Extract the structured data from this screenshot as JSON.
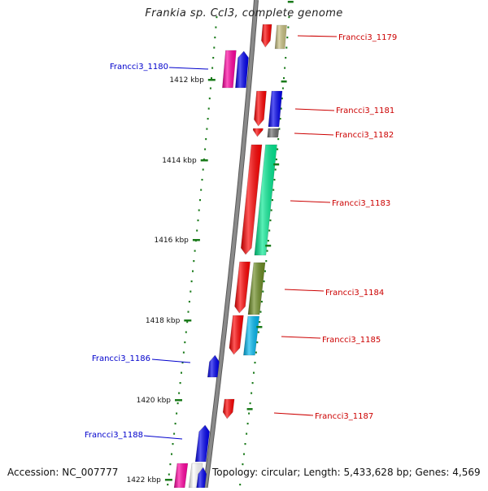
{
  "title": "Frankia sp. CcI3, complete genome",
  "accession": "Accession: NC_007777",
  "topology": "Topology: circular; Length: 5,433,628 bp; Genes: 4,569",
  "ticks": [
    {
      "label": "1412 kbp",
      "kbp": 1412
    },
    {
      "label": "1414 kbp",
      "kbp": 1414
    },
    {
      "label": "1416 kbp",
      "kbp": 1416
    },
    {
      "label": "1418 kbp",
      "kbp": 1418
    },
    {
      "label": "1420 kbp",
      "kbp": 1420
    },
    {
      "label": "1422 kbp",
      "kbp": 1422
    }
  ],
  "genes": [
    {
      "label": "Francci3_1179",
      "strand": "reverse",
      "color": "#ff0000",
      "label_color": "#cc0000"
    },
    {
      "label": "Francci3_1180",
      "strand": "forward",
      "color": "#0000ee",
      "label_color": "#0000cc"
    },
    {
      "label": "Francci3_1181",
      "strand": "reverse",
      "color": "#ff0000",
      "label_color": "#cc0000"
    },
    {
      "label": "Francci3_1182",
      "strand": "reverse",
      "color": "#ff0000",
      "label_color": "#cc0000"
    },
    {
      "label": "Francci3_1183",
      "strand": "reverse",
      "color": "#ff0000",
      "label_color": "#cc0000"
    },
    {
      "label": "Francci3_1184",
      "strand": "reverse",
      "color": "#ff0000",
      "label_color": "#cc0000"
    },
    {
      "label": "Francci3_1185",
      "strand": "reverse",
      "color": "#ff0000",
      "label_color": "#cc0000"
    },
    {
      "label": "Francci3_1186",
      "strand": "forward",
      "color": "#0000ee",
      "label_color": "#0000cc"
    },
    {
      "label": "Francci3_1187",
      "strand": "reverse",
      "color": "#ff0000",
      "label_color": "#cc0000"
    },
    {
      "label": "Francci3_1188",
      "strand": "forward",
      "color": "#0000ee",
      "label_color": "#0000cc"
    },
    {
      "label": "",
      "strand": "forward",
      "color": "#0000ee",
      "label_color": "#0000cc"
    }
  ],
  "colors": {
    "backbone": "#8a8a8a",
    "tick": "#1a7a1a",
    "cog_pink": "#ff00a0",
    "cog_khaki": "#c8c080",
    "cog_gray": "#707070",
    "cog_green": "#00e890",
    "cog_olive": "#6a8a20",
    "cog_cyan": "#00b8f0",
    "cog_blue": "#0000ee",
    "cog_white": "#ffffff"
  }
}
